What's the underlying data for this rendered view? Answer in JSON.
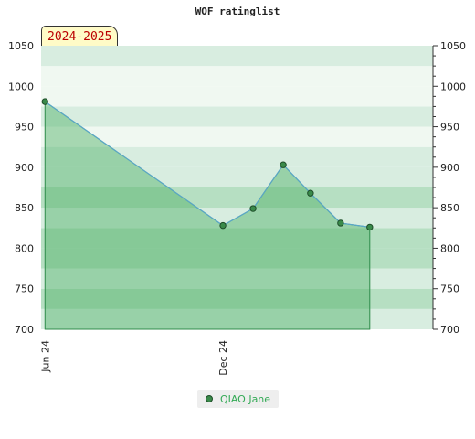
{
  "title": "WOF ratinglist",
  "season_label": "2024-2025",
  "legend": {
    "label": "QIAO Jane"
  },
  "colors": {
    "band_light": "#f0f8f1",
    "band_mid": "#d8ede0",
    "band_dark": "#b6dfc2",
    "area_fill": "#4caf64",
    "line": "#5aa6c9",
    "marker": "#3a8a4a",
    "axis_text": "#222222",
    "badge_text": "#bb0000"
  },
  "chart_data": {
    "type": "area",
    "title": "WOF ratinglist",
    "xlabel": "",
    "ylabel": "",
    "ylim": [
      700,
      1050
    ],
    "yticks": [
      700,
      750,
      800,
      850,
      900,
      950,
      1000,
      1050
    ],
    "xticks": [
      {
        "label": "Jun 24",
        "x": "2024-06-01"
      },
      {
        "label": "Dec 24",
        "x": "2024-12-01"
      }
    ],
    "xlim": [
      "2024-05-28",
      "2025-07-05"
    ],
    "grid": true,
    "legend_position": "bottom-center",
    "series": [
      {
        "name": "QIAO Jane",
        "points": [
          {
            "x": "2024-06-01",
            "y": 981
          },
          {
            "x": "2024-12-01",
            "y": 828
          },
          {
            "x": "2025-01-01",
            "y": 849
          },
          {
            "x": "2025-02-01",
            "y": 903
          },
          {
            "x": "2025-03-01",
            "y": 868
          },
          {
            "x": "2025-04-01",
            "y": 831
          },
          {
            "x": "2025-05-01",
            "y": 826
          }
        ]
      }
    ]
  }
}
